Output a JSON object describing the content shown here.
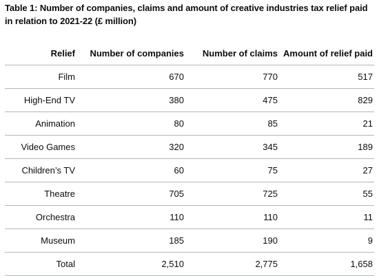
{
  "caption": "Table 1: Number of companies, claims and amount of creative industries tax relief paid in relation to 2021-22 (£ million)",
  "columns": [
    "Relief",
    "Number of companies",
    "Number of claims",
    "Amount of relief paid"
  ],
  "rows": [
    {
      "relief": "Film",
      "companies": "670",
      "claims": "770",
      "amount": "517"
    },
    {
      "relief": "High-End TV",
      "companies": "380",
      "claims": "475",
      "amount": "829"
    },
    {
      "relief": "Animation",
      "companies": "80",
      "claims": "85",
      "amount": "21"
    },
    {
      "relief": "Video Games",
      "companies": "320",
      "claims": "345",
      "amount": "189"
    },
    {
      "relief": "Children’s TV",
      "companies": "60",
      "claims": "75",
      "amount": "27"
    },
    {
      "relief": "Theatre",
      "companies": "705",
      "claims": "725",
      "amount": "55"
    },
    {
      "relief": "Orchestra",
      "companies": "110",
      "claims": "110",
      "amount": "11"
    },
    {
      "relief": "Museum",
      "companies": "185",
      "claims": "190",
      "amount": "9"
    },
    {
      "relief": "Total",
      "companies": "2,510",
      "claims": "2,775",
      "amount": "1,658"
    }
  ]
}
